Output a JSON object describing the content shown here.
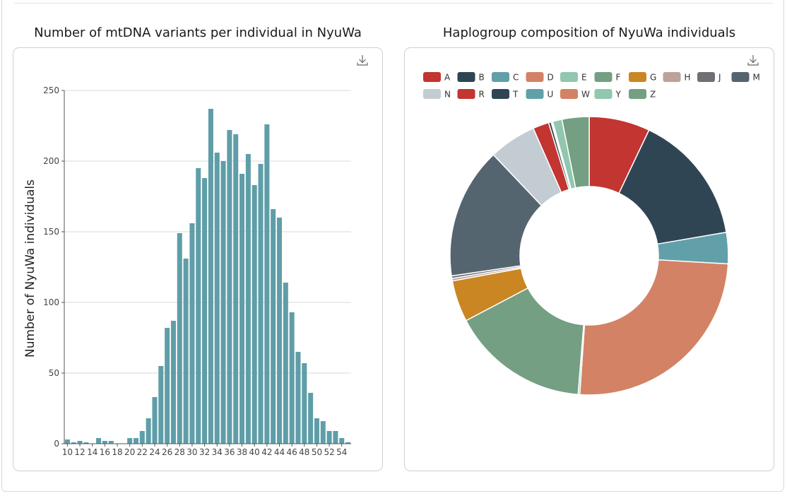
{
  "histogram": {
    "title": "Number of mtDNA variants per individual in NyuWa",
    "download_icon": "download-icon"
  },
  "donut": {
    "title": "Haplogroup composition of NyuWa individuals",
    "download_icon": "download-icon"
  },
  "chart_data": [
    {
      "type": "bar",
      "title": "Number of mtDNA variants per individual in NyuWa",
      "xlabel": "",
      "ylabel": "Number of NyuWa individuals",
      "ylim": [
        0,
        250
      ],
      "yticks": [
        0,
        50,
        100,
        150,
        200,
        250
      ],
      "xtick_labels": [
        "10",
        "12",
        "14",
        "16",
        "18",
        "20",
        "22",
        "24",
        "26",
        "28",
        "30",
        "32",
        "34",
        "36",
        "38",
        "40",
        "42",
        "44",
        "46",
        "48",
        "50",
        "52",
        "54"
      ],
      "categories": [
        10,
        11,
        12,
        13,
        14,
        15,
        16,
        17,
        18,
        19,
        20,
        21,
        22,
        23,
        24,
        25,
        26,
        27,
        28,
        29,
        30,
        31,
        32,
        33,
        34,
        35,
        36,
        37,
        38,
        39,
        40,
        41,
        42,
        43,
        44,
        45,
        46,
        47,
        48,
        49,
        50,
        51,
        52,
        53,
        54,
        55
      ],
      "values": [
        3,
        1,
        2,
        1,
        0,
        4,
        2,
        2,
        0,
        0,
        4,
        4,
        9,
        18,
        33,
        55,
        82,
        87,
        149,
        131,
        156,
        195,
        188,
        237,
        206,
        200,
        222,
        219,
        191,
        205,
        183,
        198,
        226,
        166,
        160,
        114,
        93,
        65,
        57,
        36,
        18,
        16,
        9,
        9,
        4,
        1
      ],
      "color": "#5f9ea8",
      "grid": true
    },
    {
      "type": "pie",
      "subtype": "donut",
      "title": "Haplogroup composition of NyuWa individuals",
      "legend_position": "top",
      "labels": [
        "A",
        "B",
        "C",
        "D",
        "E",
        "F",
        "G",
        "H",
        "J",
        "M",
        "N",
        "R",
        "T",
        "U",
        "W",
        "Y",
        "Z"
      ],
      "values": [
        7.2,
        15.5,
        3.7,
        25.6,
        0.2,
        16.3,
        4.9,
        0.3,
        0.3,
        15.5,
        5.6,
        1.9,
        0.3,
        0.1,
        0.1,
        1.1,
        3.2
      ],
      "colors": [
        "#c23531",
        "#2f4554",
        "#61a0a8",
        "#d48265",
        "#91c7ae",
        "#749f83",
        "#ca8622",
        "#bda29a",
        "#6e7074",
        "#546570",
        "#c4ccd3",
        "#c23531",
        "#2f4554",
        "#61a0a8",
        "#d48265",
        "#91c7ae",
        "#749f83"
      ]
    }
  ]
}
